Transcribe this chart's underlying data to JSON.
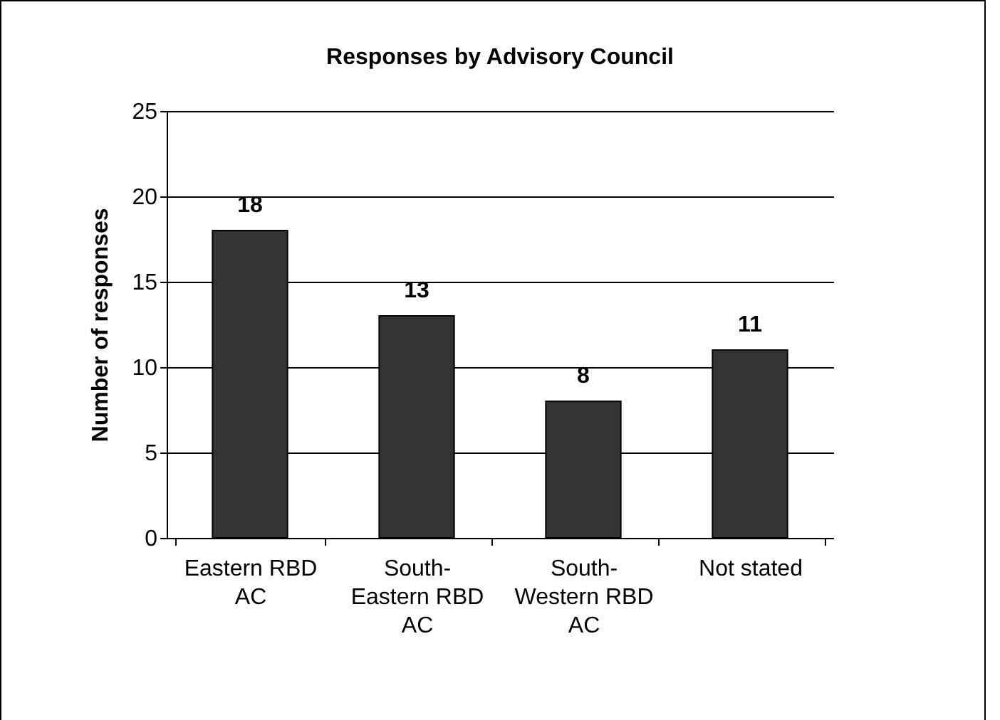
{
  "chart_data": {
    "type": "bar",
    "title": "Responses by Advisory Council",
    "ylabel": "Number of responses",
    "categories": [
      "Eastern RBD AC",
      "South-Eastern RBD AC",
      "South-Western RBD AC",
      "Not stated"
    ],
    "values": [
      18,
      13,
      8,
      11
    ],
    "color": "#333333",
    "ylim": [
      0,
      25
    ],
    "yticks": [
      0,
      5,
      10,
      15,
      20,
      25
    ],
    "grid": "y",
    "data_labels": true
  }
}
